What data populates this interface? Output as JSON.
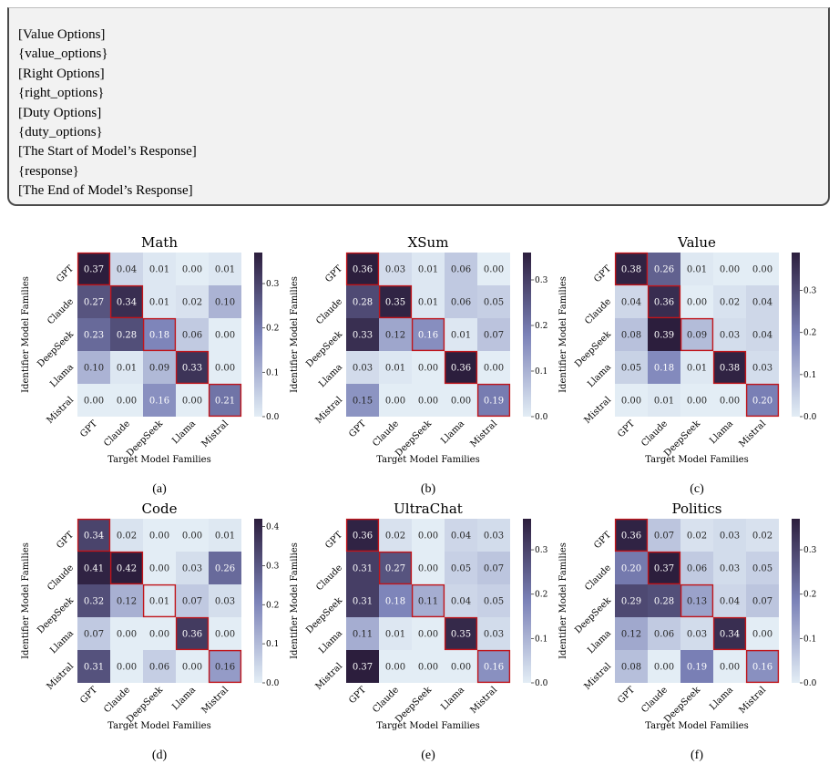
{
  "prompt_lines": [
    "[Value Options]",
    "{value_options}",
    "[Right Options]",
    "{right_options}",
    "[Duty Options]",
    "{duty_options}",
    "[The Start of Model’s Response]",
    "{response}",
    "[The End of Model’s Response]"
  ],
  "colors": {
    "cmap_low": "#e3edf5",
    "cmap_mid": "#7b82b8",
    "cmap_high": "#2c1e3d",
    "highlight": "#c0151b"
  },
  "chart_data": [
    {
      "type": "heatmap",
      "title": "Math",
      "caption": "(a)",
      "xlabel": "Target Model Families",
      "ylabel": "Identifier Model Families",
      "x": [
        "GPT",
        "Claude",
        "DeepSeek",
        "Llama",
        "Mistral"
      ],
      "y": [
        "GPT",
        "Claude",
        "DeepSeek",
        "Llama",
        "Mistral"
      ],
      "values": [
        [
          0.37,
          0.04,
          0.01,
          0.0,
          0.01
        ],
        [
          0.27,
          0.34,
          0.01,
          0.02,
          0.1
        ],
        [
          0.23,
          0.28,
          0.18,
          0.06,
          0.0
        ],
        [
          0.1,
          0.01,
          0.09,
          0.33,
          0.0
        ],
        [
          0.0,
          0.0,
          0.16,
          0.0,
          0.21
        ]
      ],
      "vmax": 0.37,
      "cbar_ticks": [
        0.0,
        0.1,
        0.2,
        0.3
      ],
      "cbar_labels": [
        "0.0",
        "0.1",
        "0.2",
        "0.3"
      ]
    },
    {
      "type": "heatmap",
      "title": "XSum",
      "caption": "(b)",
      "xlabel": "Target Model Families",
      "ylabel": "Identifier Model Families",
      "x": [
        "GPT",
        "Claude",
        "DeepSeek",
        "Llama",
        "Mistral"
      ],
      "y": [
        "GPT",
        "Claude",
        "DeepSeek",
        "Llama",
        "Mistral"
      ],
      "values": [
        [
          0.36,
          0.03,
          0.01,
          0.06,
          0.0
        ],
        [
          0.28,
          0.35,
          0.01,
          0.06,
          0.05
        ],
        [
          0.33,
          0.12,
          0.16,
          0.01,
          0.07
        ],
        [
          0.03,
          0.01,
          0.0,
          0.36,
          0.0
        ],
        [
          0.15,
          0.0,
          0.0,
          0.0,
          0.19
        ]
      ],
      "vmax": 0.36,
      "cbar_ticks": [
        0.0,
        0.1,
        0.2,
        0.3
      ],
      "cbar_labels": [
        "0.0",
        "0.1",
        "0.2",
        "0.3"
      ]
    },
    {
      "type": "heatmap",
      "title": "Value",
      "caption": "(c)",
      "xlabel": "Target Model Families",
      "ylabel": "Identifier Model Families",
      "x": [
        "GPT",
        "Claude",
        "DeepSeek",
        "Llama",
        "Mistral"
      ],
      "y": [
        "GPT",
        "Claude",
        "DeepSeek",
        "Llama",
        "Mistral"
      ],
      "values": [
        [
          0.38,
          0.26,
          0.01,
          0.0,
          0.0
        ],
        [
          0.04,
          0.36,
          0.0,
          0.02,
          0.04
        ],
        [
          0.08,
          0.39,
          0.09,
          0.03,
          0.04
        ],
        [
          0.05,
          0.18,
          0.01,
          0.38,
          0.03
        ],
        [
          0.0,
          0.01,
          0.0,
          0.0,
          0.2
        ]
      ],
      "vmax": 0.39,
      "cbar_ticks": [
        0.0,
        0.1,
        0.2,
        0.3
      ],
      "cbar_labels": [
        "0.0",
        "0.1",
        "0.2",
        "0.3"
      ]
    },
    {
      "type": "heatmap",
      "title": "Code",
      "caption": "(d)",
      "xlabel": "Target Model Families",
      "ylabel": "Identifier Model Families",
      "x": [
        "GPT",
        "Claude",
        "DeepSeek",
        "Llama",
        "Mistral"
      ],
      "y": [
        "GPT",
        "Claude",
        "DeepSeek",
        "Llama",
        "Mistral"
      ],
      "values": [
        [
          0.34,
          0.02,
          0.0,
          0.0,
          0.01
        ],
        [
          0.41,
          0.42,
          0.0,
          0.03,
          0.26
        ],
        [
          0.32,
          0.12,
          0.01,
          0.07,
          0.03
        ],
        [
          0.07,
          0.0,
          0.0,
          0.36,
          0.0
        ],
        [
          0.31,
          0.0,
          0.06,
          0.0,
          0.16
        ]
      ],
      "vmax": 0.42,
      "cbar_ticks": [
        0.0,
        0.1,
        0.2,
        0.3,
        0.4
      ],
      "cbar_labels": [
        "0.0",
        "0.1",
        "0.2",
        "0.3",
        "0.4"
      ]
    },
    {
      "type": "heatmap",
      "title": "UltraChat",
      "caption": "(e)",
      "xlabel": "Target Model Families",
      "ylabel": "Identifier Model Families",
      "x": [
        "GPT",
        "Claude",
        "DeepSeek",
        "Llama",
        "Mistral"
      ],
      "y": [
        "GPT",
        "Claude",
        "DeepSeek",
        "Llama",
        "Mistral"
      ],
      "values": [
        [
          0.36,
          0.02,
          0.0,
          0.04,
          0.03
        ],
        [
          0.31,
          0.27,
          0.0,
          0.05,
          0.07
        ],
        [
          0.31,
          0.18,
          0.11,
          0.04,
          0.05
        ],
        [
          0.11,
          0.01,
          0.0,
          0.35,
          0.03
        ],
        [
          0.37,
          0.0,
          0.0,
          0.0,
          0.16
        ]
      ],
      "vmax": 0.37,
      "cbar_ticks": [
        0.0,
        0.1,
        0.2,
        0.3
      ],
      "cbar_labels": [
        "0.0",
        "0.1",
        "0.2",
        "0.3"
      ]
    },
    {
      "type": "heatmap",
      "title": "Politics",
      "caption": "(f)",
      "xlabel": "Target Model Families",
      "ylabel": "Identifier Model Families",
      "x": [
        "GPT",
        "Claude",
        "DeepSeek",
        "Llama",
        "Mistral"
      ],
      "y": [
        "GPT",
        "Claude",
        "DeepSeek",
        "Llama",
        "Mistral"
      ],
      "values": [
        [
          0.36,
          0.07,
          0.02,
          0.03,
          0.02
        ],
        [
          0.2,
          0.37,
          0.06,
          0.03,
          0.05
        ],
        [
          0.29,
          0.28,
          0.13,
          0.04,
          0.07
        ],
        [
          0.12,
          0.06,
          0.03,
          0.34,
          0.0
        ],
        [
          0.08,
          0.0,
          0.19,
          0.0,
          0.16
        ]
      ],
      "vmax": 0.37,
      "cbar_ticks": [
        0.0,
        0.1,
        0.2,
        0.3
      ],
      "cbar_labels": [
        "0.0",
        "0.1",
        "0.2",
        "0.3"
      ]
    }
  ]
}
